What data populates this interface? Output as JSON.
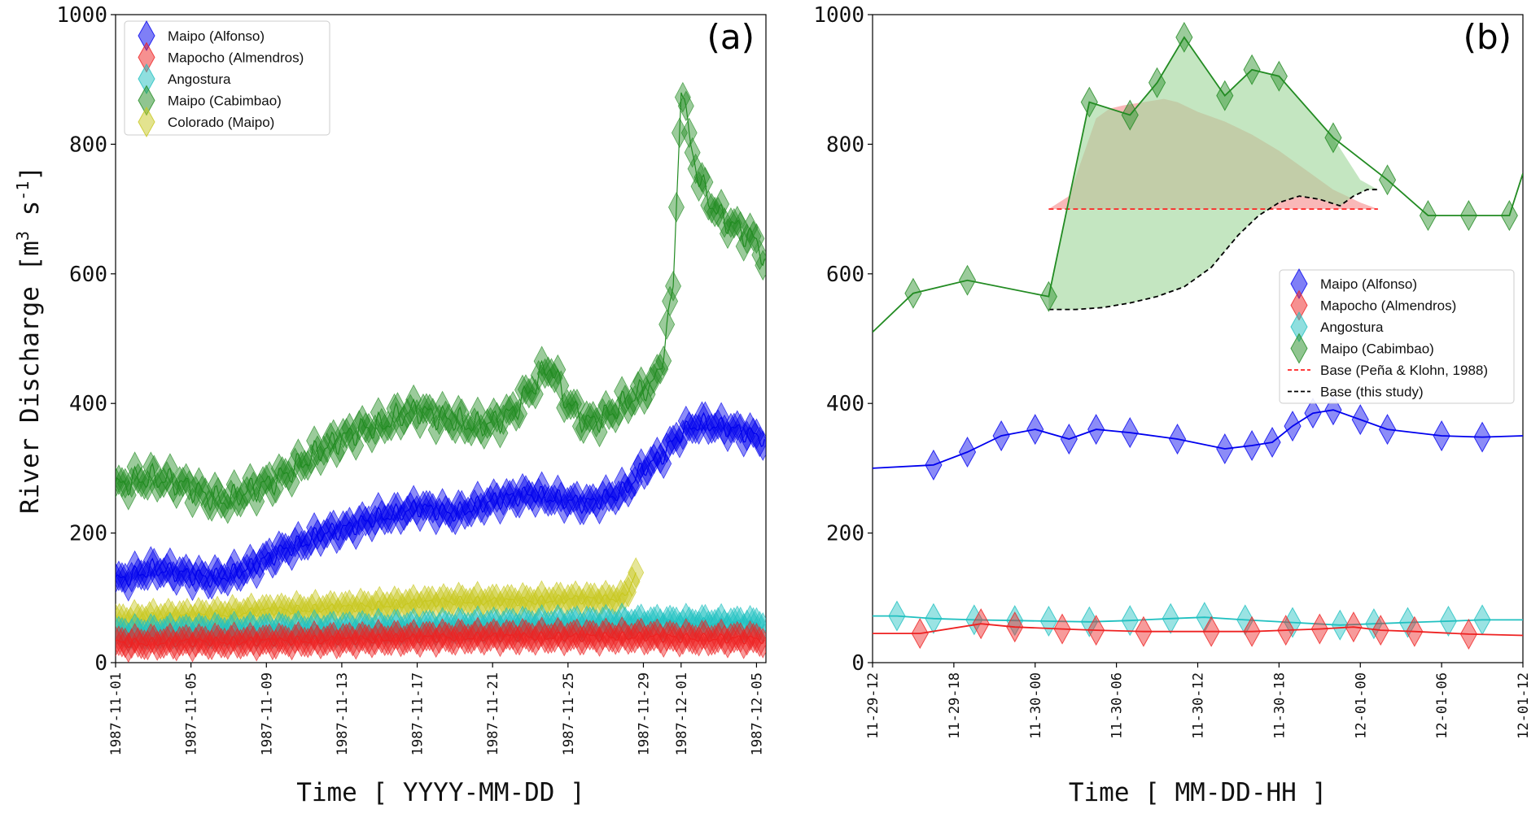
{
  "colors": {
    "alfonso": "#0000ee",
    "mapocho": "#ee2222",
    "angostura": "#20c0c0",
    "cabimbao": "#228b22",
    "colorado": "#c8c820",
    "base_pena": "#ff2222",
    "base_study": "#000000",
    "fill_pena": "#f7a0a0",
    "fill_study": "#a5d8a0"
  },
  "ylabel_parts": [
    "River Discharge [m",
    "3",
    " s",
    "-1",
    "]"
  ],
  "chart_data": [
    {
      "type": "line",
      "panel_label": "(a)",
      "xlabel": "Time [ YYYY-MM-DD ]",
      "ylabel": "River Discharge [m3 s-1]",
      "xlim": [
        0,
        34.5
      ],
      "ylim": [
        0,
        1000
      ],
      "yticks": [
        0,
        200,
        400,
        600,
        800,
        1000
      ],
      "xticks": [
        0,
        4,
        8,
        12,
        16,
        20,
        24,
        28,
        30,
        34
      ],
      "xtick_labels": [
        "1987-11-01",
        "1987-11-05",
        "1987-11-09",
        "1987-11-13",
        "1987-11-17",
        "1987-11-21",
        "1987-11-25",
        "1987-11-29",
        "1987-12-01",
        "1987-12-05"
      ],
      "legend_position": "top-left",
      "series": [
        {
          "key": "cabimbao",
          "name": "Maipo (Cabimbao)",
          "x": [
            0,
            1,
            2,
            3,
            4,
            5,
            6,
            7,
            8,
            9,
            10,
            11,
            12,
            13,
            14,
            15,
            16,
            17,
            18,
            19,
            20,
            21,
            22,
            23,
            24,
            25,
            26,
            27,
            28,
            28.8,
            29.6,
            30,
            30.3,
            31,
            32,
            33,
            34,
            34.5
          ],
          "y": [
            270,
            282,
            285,
            280,
            270,
            255,
            250,
            265,
            275,
            290,
            310,
            330,
            345,
            360,
            365,
            380,
            390,
            380,
            375,
            365,
            370,
            385,
            420,
            460,
            400,
            370,
            380,
            400,
            420,
            440,
            580,
            900,
            830,
            740,
            690,
            670,
            650,
            620
          ]
        },
        {
          "key": "alfonso",
          "name": "Maipo (Alfonso)",
          "x": [
            0,
            1,
            2,
            3,
            4,
            5,
            6,
            7,
            8,
            9,
            10,
            11,
            12,
            13,
            14,
            15,
            16,
            17,
            18,
            19,
            20,
            21,
            22,
            23,
            24,
            25,
            26,
            27,
            28,
            29,
            30,
            31,
            32,
            33,
            34,
            34.5
          ],
          "y": [
            125,
            135,
            145,
            140,
            135,
            130,
            135,
            145,
            160,
            175,
            185,
            200,
            205,
            215,
            225,
            230,
            240,
            235,
            230,
            240,
            250,
            255,
            260,
            255,
            250,
            245,
            255,
            265,
            300,
            320,
            355,
            370,
            365,
            358,
            350,
            345
          ]
        },
        {
          "key": "colorado",
          "name": "Colorado (Maipo)",
          "x": [
            0,
            2,
            4,
            6,
            8,
            10,
            12,
            14,
            16,
            18,
            20,
            22,
            24,
            26,
            27,
            27.6
          ],
          "y": [
            65,
            70,
            72,
            75,
            80,
            82,
            85,
            88,
            92,
            95,
            95,
            95,
            98,
            98,
            100,
            140
          ]
        },
        {
          "key": "angostura",
          "name": "Angostura",
          "x": [
            0,
            4,
            8,
            12,
            16,
            20,
            24,
            28,
            30,
            34.5
          ],
          "y": [
            45,
            48,
            50,
            52,
            55,
            58,
            60,
            62,
            62,
            60
          ]
        },
        {
          "key": "mapocho",
          "name": "Mapocho (Almendros)",
          "x": [
            0,
            4,
            8,
            12,
            16,
            20,
            24,
            28,
            30,
            34.5
          ],
          "y": [
            30,
            32,
            33,
            35,
            38,
            40,
            40,
            40,
            38,
            36
          ]
        }
      ],
      "legend": [
        "Maipo (Alfonso)",
        "Mapocho (Almendros)",
        "Angostura",
        "Maipo (Cabimbao)",
        "Colorado (Maipo)"
      ]
    },
    {
      "type": "line",
      "panel_label": "(b)",
      "xlabel": "Time [ MM-DD-HH ]",
      "ylabel": "",
      "xlim": [
        0,
        48
      ],
      "ylim": [
        0,
        1000
      ],
      "yticks": [
        0,
        200,
        400,
        600,
        800,
        1000
      ],
      "xticks": [
        0,
        6,
        12,
        18,
        24,
        30,
        36,
        42,
        48
      ],
      "xtick_labels": [
        "11-29-12",
        "11-29-18",
        "11-30-00",
        "11-30-06",
        "11-30-12",
        "11-30-18",
        "12-01-00",
        "12-01-06",
        "12-01-12"
      ],
      "legend_position": "right",
      "series": [
        {
          "key": "cabimbao",
          "name": "Maipo (Cabimbao)",
          "x": [
            0,
            3,
            7,
            13,
            16,
            19,
            21,
            23,
            26,
            28,
            30,
            34,
            38,
            41,
            44,
            47,
            48
          ],
          "y": [
            510,
            570,
            590,
            565,
            865,
            845,
            895,
            965,
            875,
            915,
            905,
            810,
            745,
            690,
            690,
            690,
            755
          ]
        },
        {
          "key": "alfonso",
          "name": "Maipo (Alfonso)",
          "x": [
            0,
            4.5,
            7,
            9.5,
            12,
            14.5,
            16.5,
            19,
            22.5,
            26,
            28,
            29.5,
            31,
            32.5,
            34,
            36,
            38,
            42,
            45,
            48
          ],
          "y": [
            300,
            305,
            325,
            350,
            360,
            345,
            360,
            355,
            345,
            330,
            335,
            340,
            365,
            385,
            390,
            375,
            360,
            350,
            348,
            350
          ]
        },
        {
          "key": "angostura",
          "name": "Angostura",
          "x": [
            0,
            1.8,
            4.5,
            7.5,
            10.5,
            13,
            16,
            19,
            22,
            24.5,
            27.5,
            31,
            34.5,
            37,
            39.5,
            42.5,
            45,
            48
          ],
          "y": [
            72,
            72,
            68,
            66,
            65,
            64,
            63,
            65,
            68,
            70,
            66,
            62,
            58,
            60,
            62,
            64,
            66,
            66
          ]
        },
        {
          "key": "mapocho",
          "name": "Mapocho (Almendros)",
          "x": [
            0,
            3.5,
            8,
            10.5,
            14,
            16.5,
            20,
            25,
            28,
            30.5,
            33,
            35.5,
            37.5,
            40,
            44,
            48
          ],
          "y": [
            45,
            45,
            60,
            55,
            52,
            50,
            48,
            48,
            48,
            50,
            52,
            55,
            50,
            48,
            44,
            42
          ]
        }
      ],
      "fill_pena": {
        "x": [
          13,
          14.5,
          15.5,
          16.5,
          17.5,
          18.5,
          20,
          21.5,
          22.5,
          24,
          26,
          28,
          30,
          32,
          34,
          36,
          37.3
        ],
        "upper": [
          700,
          720,
          780,
          840,
          855,
          860,
          865,
          870,
          865,
          850,
          835,
          815,
          790,
          760,
          730,
          710,
          700
        ],
        "lower": 700
      },
      "fill_study": {
        "x": [
          13,
          16,
          19,
          21,
          23,
          26,
          28,
          30,
          34,
          36,
          37.3
        ],
        "upper": [
          565,
          865,
          845,
          895,
          965,
          875,
          915,
          905,
          810,
          745,
          730
        ]
      },
      "base_pena": {
        "name": "Base (Peña & Klohn, 1988)",
        "x": [
          13,
          37.3
        ],
        "y": [
          700,
          700
        ]
      },
      "base_study": {
        "name": "Base (this study)",
        "x": [
          13,
          15,
          17,
          19,
          21,
          23,
          25,
          27,
          28.5,
          30,
          31.5,
          33,
          34.5,
          35.5,
          36.5,
          37.3
        ],
        "y": [
          545,
          545,
          548,
          555,
          565,
          580,
          610,
          660,
          690,
          710,
          720,
          715,
          705,
          720,
          730,
          730
        ]
      },
      "legend": [
        "Maipo (Alfonso)",
        "Mapocho (Almendros)",
        "Angostura",
        "Maipo (Cabimbao)",
        "Base (Peña & Klohn, 1988)",
        "Base (this study)"
      ]
    }
  ]
}
